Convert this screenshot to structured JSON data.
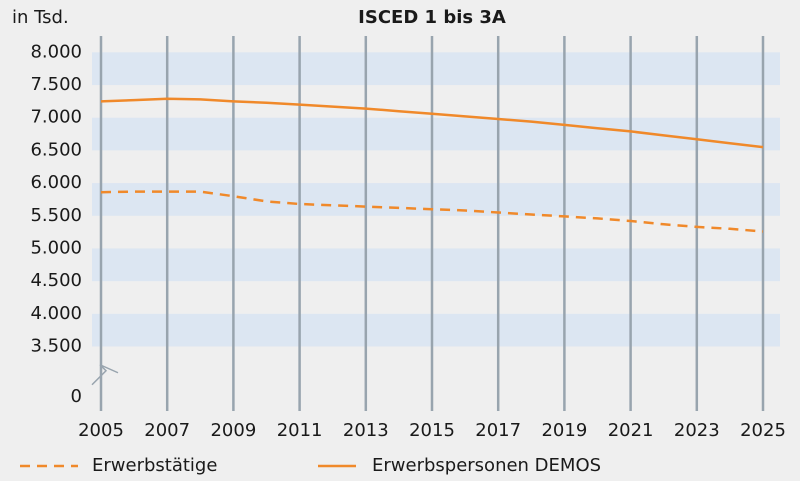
{
  "chart_data": {
    "type": "line",
    "title": "ISCED 1 bis 3A",
    "y_label": "in Tsd.",
    "x": [
      2005,
      2006,
      2007,
      2008,
      2009,
      2010,
      2011,
      2012,
      2013,
      2014,
      2015,
      2016,
      2017,
      2018,
      2019,
      2020,
      2021,
      2022,
      2023,
      2024,
      2025
    ],
    "series": [
      {
        "name": "Erwerbstätige",
        "color": "#f0892a",
        "dashed": true,
        "values": [
          5860,
          5870,
          5870,
          5870,
          5800,
          5720,
          5680,
          5660,
          5640,
          5620,
          5600,
          5580,
          5550,
          5520,
          5490,
          5460,
          5420,
          5370,
          5330,
          5300,
          5260
        ]
      },
      {
        "name": "Erwerbspersonen DEMOS",
        "color": "#f0892a",
        "dashed": false,
        "values": [
          7250,
          7270,
          7290,
          7280,
          7250,
          7230,
          7200,
          7170,
          7140,
          7100,
          7060,
          7020,
          6980,
          6940,
          6890,
          6840,
          6790,
          6730,
          6670,
          6610,
          6550
        ]
      }
    ],
    "xlim": [
      2005,
      2025
    ],
    "xticks": [
      2005,
      2007,
      2009,
      2011,
      2013,
      2015,
      2017,
      2019,
      2021,
      2023,
      2025
    ],
    "ylim": [
      3500,
      8250
    ],
    "y_break": true,
    "yticks": [
      0,
      {
        "value": 3500,
        "label": "3.500"
      },
      {
        "value": 4000,
        "label": "4.000"
      },
      {
        "value": 4500,
        "label": "4.500"
      },
      {
        "value": 5000,
        "label": "5.000"
      },
      {
        "value": 5500,
        "label": "5.500"
      },
      {
        "value": 6000,
        "label": "6.000"
      },
      {
        "value": 6500,
        "label": "6.500"
      },
      {
        "value": 7000,
        "label": "7.000"
      },
      {
        "value": 7500,
        "label": "7.500"
      },
      {
        "value": 8000,
        "label": "8.000"
      }
    ],
    "band_color": "#dce6f2",
    "grid_color": "#98a4ae",
    "legend": "bottom"
  }
}
